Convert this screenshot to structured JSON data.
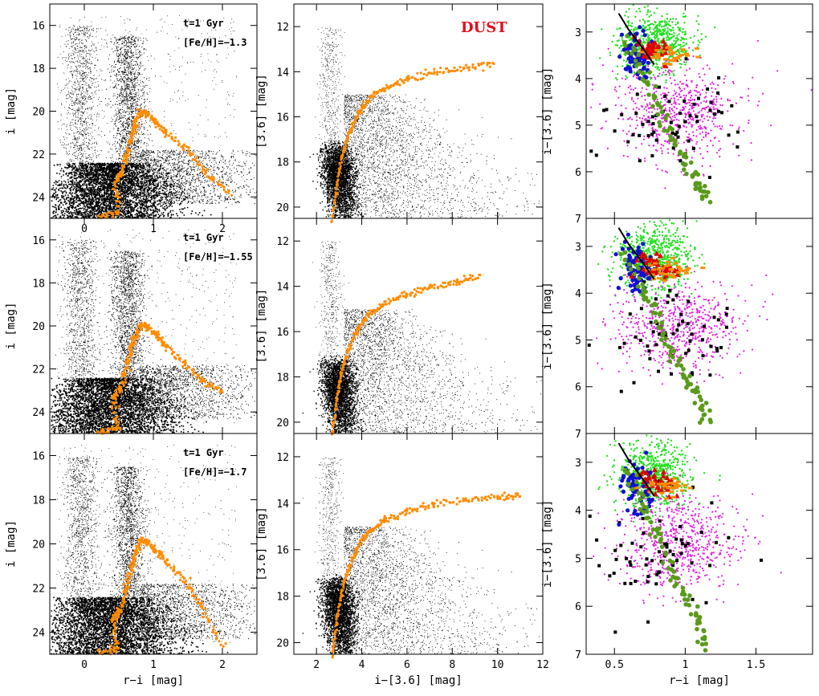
{
  "figure": {
    "colors": {
      "background": "#ffffff",
      "stars": "#000000",
      "isochrone": "#ff8c00",
      "dust_label": "#e0101a",
      "green": "#22e01e",
      "magenta": "#e020e0",
      "blue": "#1010d0",
      "red": "#e00000",
      "olive": "#5a9a1a",
      "black_sq": "#000000"
    }
  },
  "chart_data": [
    {
      "type": "scatter",
      "panel": "row1-col1",
      "xlabel": "",
      "ylabel": "i [mag]",
      "xlim": [
        -0.5,
        2.5
      ],
      "ylim": [
        25,
        15
      ],
      "xticks": [
        "0",
        "1",
        "2"
      ],
      "yticks": [
        "16",
        "18",
        "20",
        "22",
        "24"
      ],
      "annotations": [
        "t=1 Gyr",
        "[Fe/H]=−1.3"
      ],
      "series": [
        {
          "kind": "field",
          "x": [],
          "y": []
        },
        {
          "kind": "isochrone",
          "x": [
            0.22,
            0.5,
            0.46,
            0.55,
            0.62,
            0.7,
            0.75,
            0.82,
            0.92,
            1.05,
            1.2,
            1.5,
            1.75,
            2.1
          ],
          "y": [
            24.9,
            24.7,
            23.2,
            22.8,
            22.0,
            21.0,
            20.4,
            20.0,
            20.1,
            20.5,
            21.0,
            21.8,
            22.8,
            23.8
          ]
        }
      ]
    },
    {
      "type": "scatter",
      "panel": "row1-col2",
      "xlabel": "",
      "ylabel": "[3.6] [mag]",
      "xlim": [
        1,
        12
      ],
      "ylim": [
        20.5,
        11
      ],
      "xticks": [],
      "yticks": [
        "12",
        "14",
        "16",
        "18",
        "20"
      ],
      "annotations": [
        "DUST"
      ],
      "series": [
        {
          "kind": "field",
          "x": [],
          "y": []
        },
        {
          "kind": "isochrone",
          "x": [
            2.7,
            2.9,
            3.1,
            3.4,
            3.8,
            4.3,
            5.0,
            6.0,
            7.2,
            8.5,
            9.8
          ],
          "y": [
            20.5,
            19.0,
            17.8,
            16.8,
            15.9,
            15.2,
            14.7,
            14.3,
            14.0,
            13.8,
            13.6
          ]
        }
      ]
    },
    {
      "type": "scatter",
      "panel": "row1-col3",
      "xlabel": "",
      "ylabel": "i−[3.6] [mag]",
      "xlim": [
        0.3,
        1.9
      ],
      "ylim": [
        7,
        2.4
      ],
      "xticks": [],
      "yticks": [
        "3",
        "4",
        "5",
        "6",
        "7"
      ],
      "series": [
        {
          "kind": "line-black",
          "x": [
            0.53,
            0.6,
            0.7,
            0.78
          ],
          "y": [
            2.6,
            2.95,
            3.35,
            3.7
          ]
        },
        {
          "kind": "olive",
          "x": [
            0.58,
            0.7,
            0.8,
            0.9,
            1.0,
            1.1,
            1.15
          ],
          "y": [
            3.1,
            3.9,
            4.5,
            5.2,
            5.8,
            6.3,
            6.6
          ]
        }
      ]
    },
    {
      "type": "scatter",
      "panel": "row2-col1",
      "xlabel": "",
      "ylabel": "i [mag]",
      "xlim": [
        -0.5,
        2.5
      ],
      "ylim": [
        25,
        15
      ],
      "xticks": [],
      "yticks": [
        "16",
        "18",
        "20",
        "22",
        "24"
      ],
      "annotations": [
        "t=1 Gyr",
        "[Fe/H]=−1.55"
      ],
      "series": [
        {
          "kind": "field",
          "x": [],
          "y": []
        },
        {
          "kind": "isochrone",
          "x": [
            0.2,
            0.48,
            0.42,
            0.52,
            0.6,
            0.68,
            0.74,
            0.82,
            0.92,
            1.05,
            1.2,
            1.45,
            1.7,
            2.0
          ],
          "y": [
            24.9,
            24.7,
            23.3,
            22.9,
            22.0,
            21.0,
            20.4,
            19.9,
            20.0,
            20.4,
            20.9,
            21.7,
            22.5,
            23.0
          ]
        }
      ]
    },
    {
      "type": "scatter",
      "panel": "row2-col2",
      "xlabel": "",
      "ylabel": "[3.6] [mag]",
      "xlim": [
        1,
        12
      ],
      "ylim": [
        20.5,
        11
      ],
      "xticks": [],
      "yticks": [
        "12",
        "14",
        "16",
        "18",
        "20"
      ],
      "series": [
        {
          "kind": "field",
          "x": [],
          "y": []
        },
        {
          "kind": "isochrone",
          "x": [
            2.7,
            2.9,
            3.1,
            3.4,
            3.8,
            4.3,
            5.0,
            6.0,
            7.0,
            8.2,
            9.2
          ],
          "y": [
            20.5,
            19.0,
            17.8,
            16.8,
            15.9,
            15.2,
            14.7,
            14.3,
            14.0,
            13.8,
            13.5
          ]
        }
      ]
    },
    {
      "type": "scatter",
      "panel": "row2-col3",
      "xlabel": "",
      "ylabel": "i−[3.6] [mag]",
      "xlim": [
        0.3,
        1.9
      ],
      "ylim": [
        7,
        2.4
      ],
      "xticks": [],
      "yticks": [
        "3",
        "4",
        "5",
        "6",
        "7"
      ],
      "series": [
        {
          "kind": "line-black",
          "x": [
            0.53,
            0.6,
            0.7,
            0.78
          ],
          "y": [
            2.6,
            2.95,
            3.35,
            3.7
          ]
        },
        {
          "kind": "olive",
          "x": [
            0.58,
            0.7,
            0.8,
            0.9,
            1.0,
            1.1,
            1.15
          ],
          "y": [
            3.1,
            3.9,
            4.5,
            5.2,
            5.8,
            6.3,
            6.8
          ]
        }
      ]
    },
    {
      "type": "scatter",
      "panel": "row3-col1",
      "xlabel": "r−i [mag]",
      "ylabel": "i [mag]",
      "xlim": [
        -0.5,
        2.5
      ],
      "ylim": [
        25,
        15
      ],
      "xticks": [
        "0",
        "1",
        "2"
      ],
      "yticks": [
        "16",
        "18",
        "20",
        "22",
        "24"
      ],
      "annotations": [
        "t=1 Gyr",
        "[Fe/H]=−1.7"
      ],
      "series": [
        {
          "kind": "field",
          "x": [],
          "y": []
        },
        {
          "kind": "isochrone",
          "x": [
            0.2,
            0.48,
            0.42,
            0.52,
            0.6,
            0.68,
            0.74,
            0.82,
            0.92,
            1.05,
            1.2,
            1.45,
            1.7,
            2.0
          ],
          "y": [
            24.9,
            24.7,
            23.4,
            23.0,
            22.0,
            21.0,
            20.4,
            19.8,
            19.9,
            20.3,
            20.8,
            21.6,
            22.8,
            24.6
          ]
        }
      ]
    },
    {
      "type": "scatter",
      "panel": "row3-col2",
      "xlabel": "i−[3.6] [mag]",
      "ylabel": "[3.6] [mag]",
      "xlim": [
        1,
        12
      ],
      "ylim": [
        20.5,
        11
      ],
      "xticks": [
        "2",
        "4",
        "6",
        "8",
        "10",
        "12"
      ],
      "yticks": [
        "12",
        "14",
        "16",
        "18",
        "20"
      ],
      "series": [
        {
          "kind": "field",
          "x": [],
          "y": []
        },
        {
          "kind": "isochrone",
          "x": [
            2.7,
            2.9,
            3.1,
            3.4,
            3.8,
            4.3,
            5.0,
            6.0,
            7.2,
            8.6,
            10.0,
            11.0
          ],
          "y": [
            20.5,
            19.0,
            17.8,
            16.8,
            15.9,
            15.2,
            14.7,
            14.3,
            14.0,
            13.8,
            13.7,
            13.6
          ]
        }
      ]
    },
    {
      "type": "scatter",
      "panel": "row3-col3",
      "xlabel": "r−i [mag]",
      "ylabel": "i−[3.6] [mag]",
      "xlim": [
        0.3,
        1.9
      ],
      "ylim": [
        7,
        2.4
      ],
      "xticks": [
        "0.5",
        "1",
        "1.5"
      ],
      "yticks": [
        "3",
        "4",
        "5",
        "6",
        "7"
      ],
      "series": [
        {
          "kind": "line-black",
          "x": [
            0.53,
            0.6,
            0.7,
            0.78
          ],
          "y": [
            2.6,
            2.95,
            3.35,
            3.7
          ]
        },
        {
          "kind": "olive",
          "x": [
            0.58,
            0.7,
            0.8,
            0.9,
            1.0,
            1.1,
            1.15
          ],
          "y": [
            3.1,
            3.9,
            4.5,
            5.2,
            5.8,
            6.3,
            6.9
          ]
        }
      ]
    }
  ]
}
